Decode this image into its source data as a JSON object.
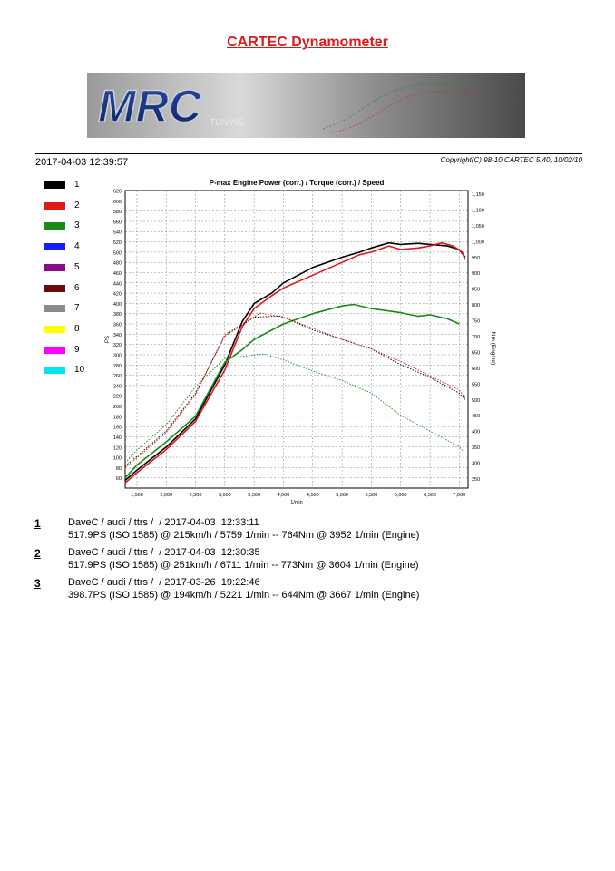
{
  "header": {
    "title": "CARTEC Dynamometer",
    "datetime": "2017-04-03 12:39:57",
    "copyright": "Copyright(C) 98-10 CARTEC 5.40, 10/02/10",
    "logo_text": "MRC",
    "logo_subtext": "TUNING"
  },
  "legend": [
    {
      "label": "1",
      "color": "#000000"
    },
    {
      "label": "2",
      "color": "#e01818"
    },
    {
      "label": "3",
      "color": "#1a8a1a"
    },
    {
      "label": "4",
      "color": "#1a1aff"
    },
    {
      "label": "5",
      "color": "#8a0a8a"
    },
    {
      "label": "6",
      "color": "#6a0a0a"
    },
    {
      "label": "7",
      "color": "#8a8a8a"
    },
    {
      "label": "8",
      "color": "#ffff00"
    },
    {
      "label": "9",
      "color": "#ff00ff"
    },
    {
      "label": "10",
      "color": "#00e6e6"
    }
  ],
  "chart_data": {
    "type": "line",
    "title": "P-max Engine Power (corr.) / Torque (corr.) / Speed",
    "xlabel": "1/min",
    "ylabel_left": "PS",
    "ylabel_right": "Nm (Engine)",
    "xlim": [
      1300,
      7150
    ],
    "ylim_left": [
      40,
      620
    ],
    "ylim_right": [
      220,
      1160
    ],
    "x_ticks": [
      1500,
      2000,
      2500,
      3000,
      3500,
      4000,
      4500,
      5000,
      5500,
      6000,
      6500,
      7000
    ],
    "x_tick_labels": [
      "1,500",
      "2,000",
      "2,500",
      "3,000",
      "3,500",
      "4,000",
      "4,500",
      "5,000",
      "5,500",
      "6,000",
      "6,500",
      "7,000"
    ],
    "y_left_ticks": [
      60,
      80,
      100,
      120,
      140,
      160,
      180,
      200,
      220,
      240,
      260,
      280,
      300,
      320,
      340,
      360,
      380,
      400,
      420,
      440,
      460,
      480,
      500,
      520,
      540,
      560,
      580,
      600,
      620
    ],
    "y_right_ticks": [
      250,
      300,
      350,
      400,
      450,
      500,
      550,
      600,
      650,
      700,
      750,
      800,
      850,
      900,
      950,
      1000,
      1050,
      1100,
      1150
    ],
    "y_right_tick_labels": [
      "250",
      "300",
      "350",
      "400",
      "450",
      "500",
      "550",
      "600",
      "650",
      "700",
      "750",
      "800",
      "850",
      "900",
      "950",
      "1,000",
      "1,050",
      "1,100",
      "1,150"
    ],
    "grid": true,
    "series": [
      {
        "name": "1",
        "kind": "power",
        "axis": "left",
        "color": "#000000",
        "x": [
          1300,
          1500,
          2000,
          2500,
          3000,
          3300,
          3500,
          3800,
          4000,
          4500,
          5000,
          5300,
          5500,
          5800,
          6000,
          6300,
          6500,
          6800,
          7000,
          7100
        ],
        "y": [
          55,
          75,
          120,
          175,
          280,
          365,
          400,
          420,
          440,
          470,
          490,
          500,
          508,
          518,
          515,
          517,
          515,
          512,
          505,
          490
        ]
      },
      {
        "name": "2",
        "kind": "power",
        "axis": "left",
        "color": "#e01818",
        "x": [
          1300,
          1500,
          2000,
          2500,
          3000,
          3300,
          3500,
          3800,
          4000,
          4500,
          5000,
          5300,
          5500,
          5800,
          6000,
          6300,
          6500,
          6700,
          6900,
          7050,
          7100
        ],
        "y": [
          50,
          70,
          115,
          170,
          270,
          355,
          390,
          415,
          430,
          455,
          480,
          495,
          500,
          512,
          505,
          508,
          512,
          518,
          512,
          500,
          485
        ]
      },
      {
        "name": "3",
        "kind": "power",
        "axis": "left",
        "color": "#1a8a1a",
        "x": [
          1300,
          1500,
          2000,
          2500,
          3000,
          3300,
          3500,
          4000,
          4500,
          5000,
          5200,
          5500,
          6000,
          6300,
          6500,
          6800,
          7000
        ],
        "y": [
          60,
          85,
          130,
          180,
          285,
          310,
          330,
          360,
          380,
          395,
          398,
          390,
          382,
          375,
          378,
          370,
          360
        ]
      },
      {
        "name": "1",
        "kind": "torque",
        "axis": "right",
        "color": "#000000",
        "x": [
          1300,
          1500,
          2000,
          2500,
          3000,
          3500,
          3950,
          4500,
          5000,
          5500,
          6000,
          6500,
          7000,
          7100
        ],
        "y": [
          290,
          320,
          400,
          520,
          700,
          760,
          764,
          720,
          690,
          660,
          610,
          570,
          520,
          500
        ]
      },
      {
        "name": "2",
        "kind": "torque",
        "axis": "right",
        "color": "#e01818",
        "x": [
          1300,
          1500,
          2000,
          2500,
          3000,
          3604,
          4000,
          4500,
          5000,
          5500,
          6000,
          6500,
          7000,
          7100
        ],
        "y": [
          285,
          315,
          395,
          515,
          705,
          773,
          760,
          725,
          690,
          660,
          620,
          575,
          530,
          505
        ]
      },
      {
        "name": "3",
        "kind": "torque",
        "axis": "right",
        "color": "#1a8a1a",
        "x": [
          1300,
          1500,
          2000,
          2500,
          3000,
          3667,
          4000,
          4500,
          5000,
          5500,
          6000,
          6500,
          7000,
          7100
        ],
        "y": [
          300,
          340,
          420,
          540,
          630,
          644,
          625,
          590,
          560,
          520,
          450,
          400,
          350,
          330
        ]
      }
    ]
  },
  "entries": [
    {
      "num": "1",
      "line1": "DaveC / audi / ttrs /  / 2017-04-03  12:33:11",
      "line2": "517.9PS (ISO 1585) @ 215km/h / 5759 1/min -- 764Nm @ 3952 1/min (Engine)"
    },
    {
      "num": "2",
      "line1": "DaveC / audi / ttrs /  / 2017-04-03  12:30:35",
      "line2": "517.9PS (ISO 1585) @ 251km/h / 6711 1/min -- 773Nm @ 3604 1/min (Engine)"
    },
    {
      "num": "3",
      "line1": "DaveC / audi / ttrs /  / 2017-03-26  19:22:46",
      "line2": "398.7PS (ISO 1585) @ 194km/h / 5221 1/min -- 644Nm @ 3667 1/min (Engine)"
    }
  ]
}
